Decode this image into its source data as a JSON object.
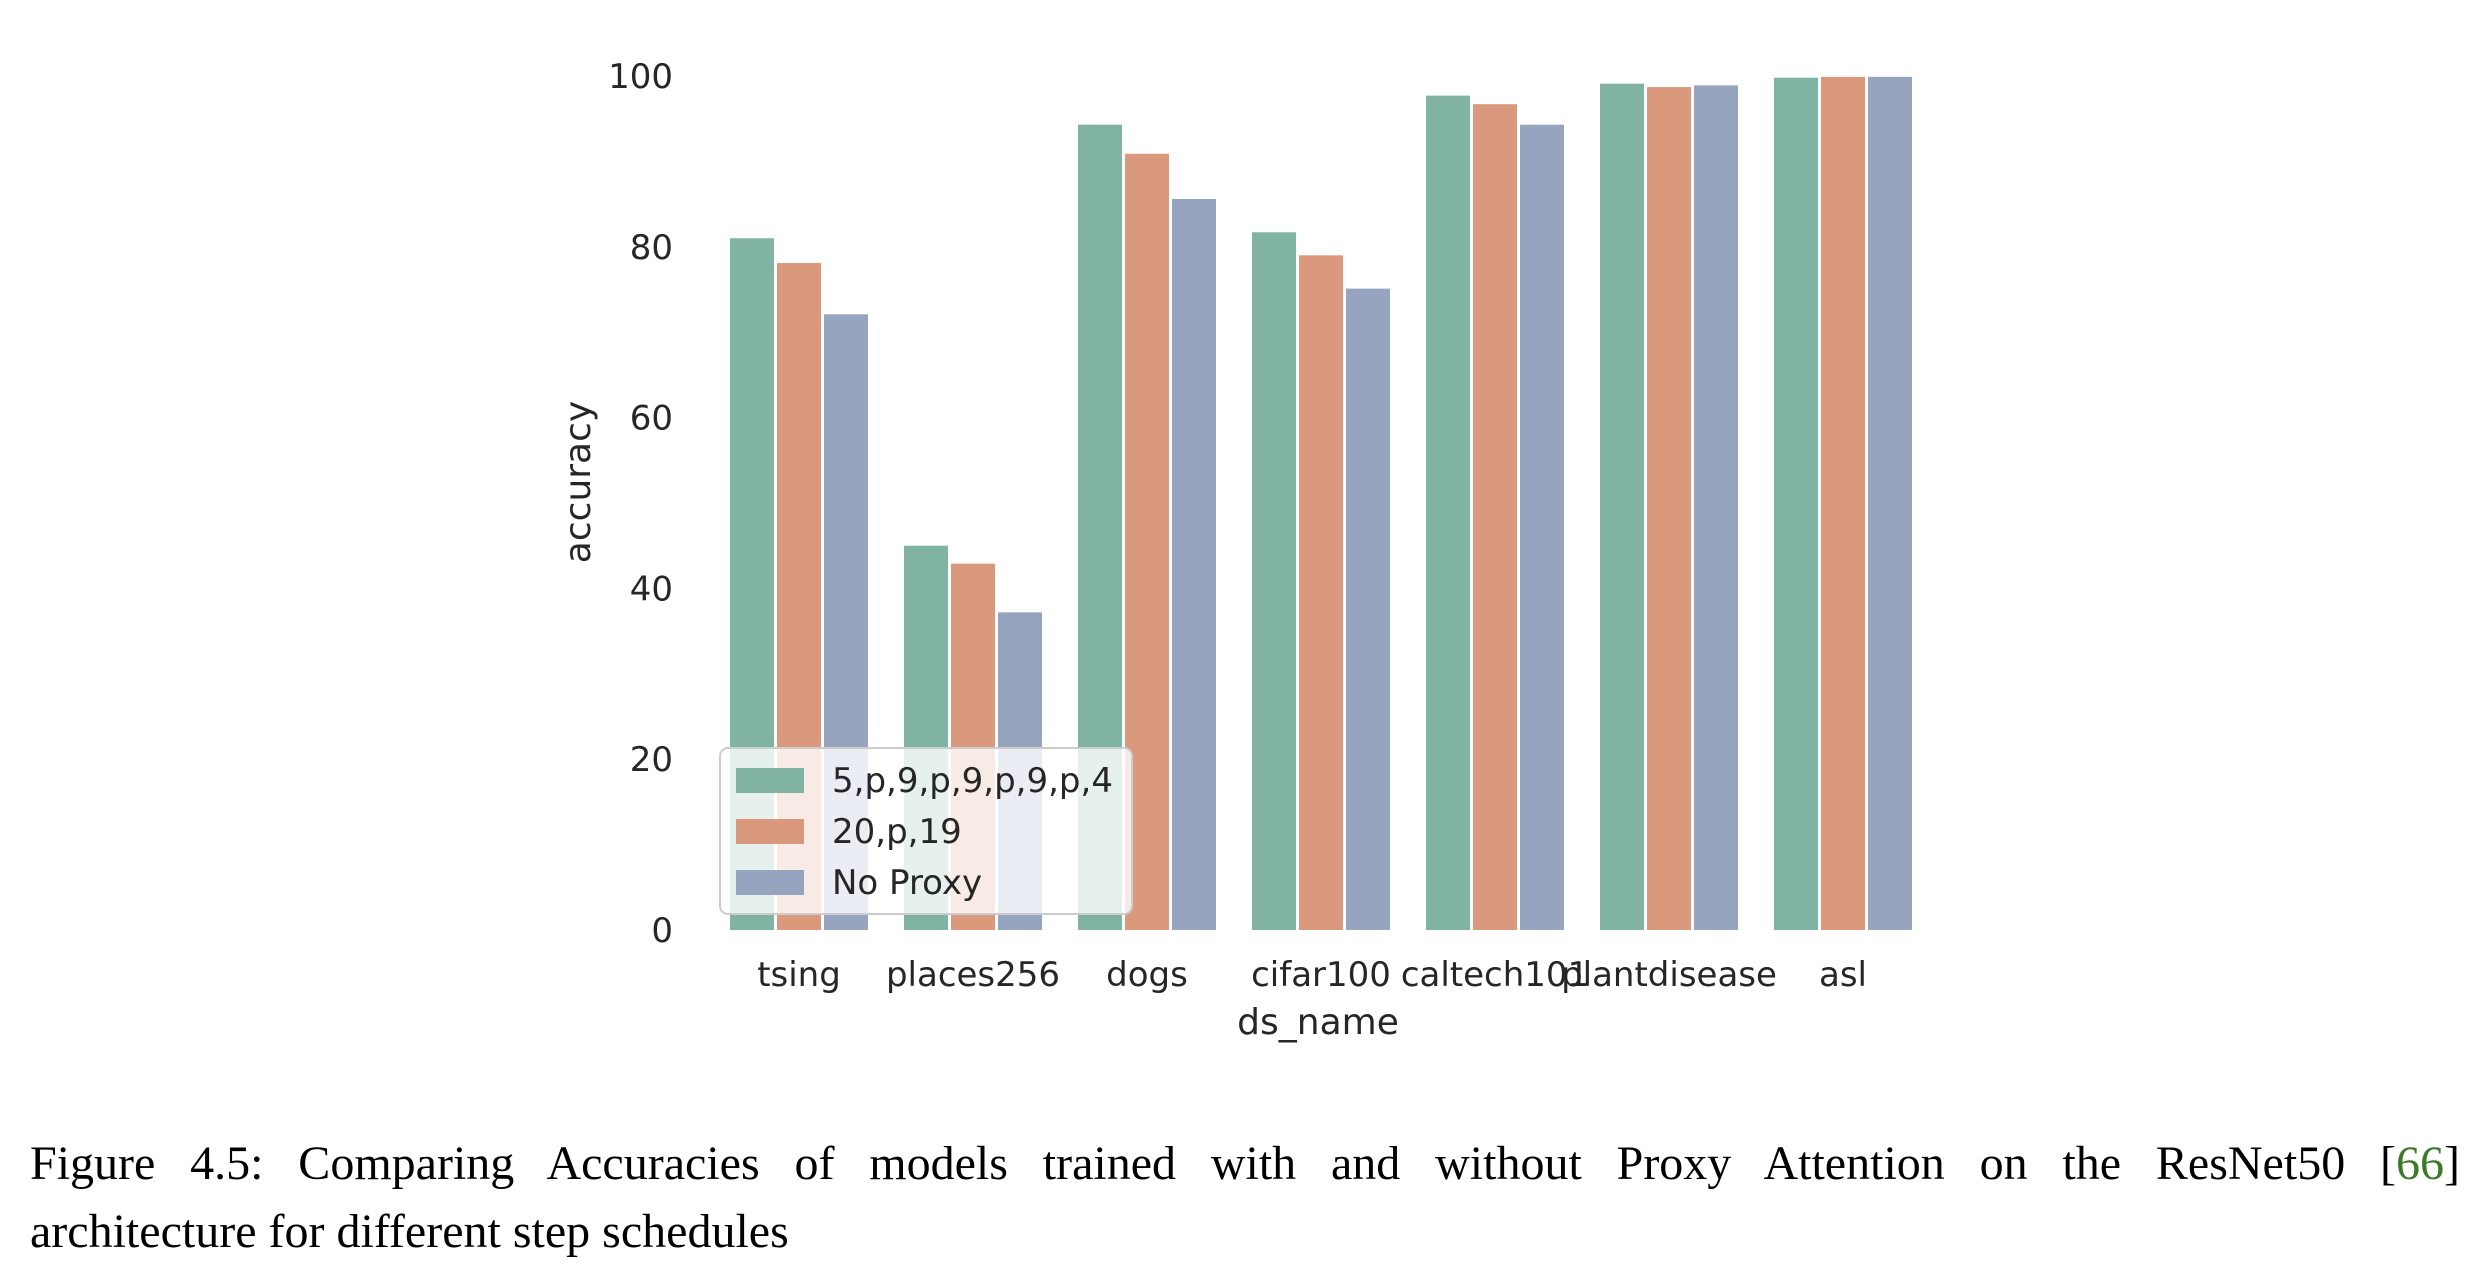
{
  "chart_data": {
    "type": "bar",
    "categories": [
      "tsing",
      "places256",
      "dogs",
      "cifar100",
      "caltech101",
      "plantdisease",
      "asl"
    ],
    "series": [
      {
        "name": "5,p,9,p,9,p,9,p,4",
        "color": "#81b3a2",
        "values": [
          81.0,
          45.0,
          94.3,
          81.7,
          97.7,
          99.1,
          99.8
        ]
      },
      {
        "name": "20,p,19",
        "color": "#da997c",
        "values": [
          78.1,
          42.9,
          90.9,
          79.0,
          96.7,
          98.7,
          99.9
        ]
      },
      {
        "name": "No Proxy",
        "color": "#97a4c0",
        "values": [
          72.1,
          37.2,
          85.6,
          75.1,
          94.3,
          98.9,
          99.9
        ]
      }
    ],
    "xlabel": "ds_name",
    "ylabel": "accuracy",
    "ylim": [
      0,
      100
    ],
    "yticks": [
      "0",
      "20",
      "40",
      "60",
      "80",
      "100"
    ],
    "grid": false,
    "legend_position": "lower-left"
  },
  "caption": {
    "label": "Figure 4.5: Comparing Accuracies of models trained with and without Proxy Attention on the ResNet50 [",
    "citation": "66",
    "close": "]",
    "line2": "architecture for different step schedules"
  }
}
